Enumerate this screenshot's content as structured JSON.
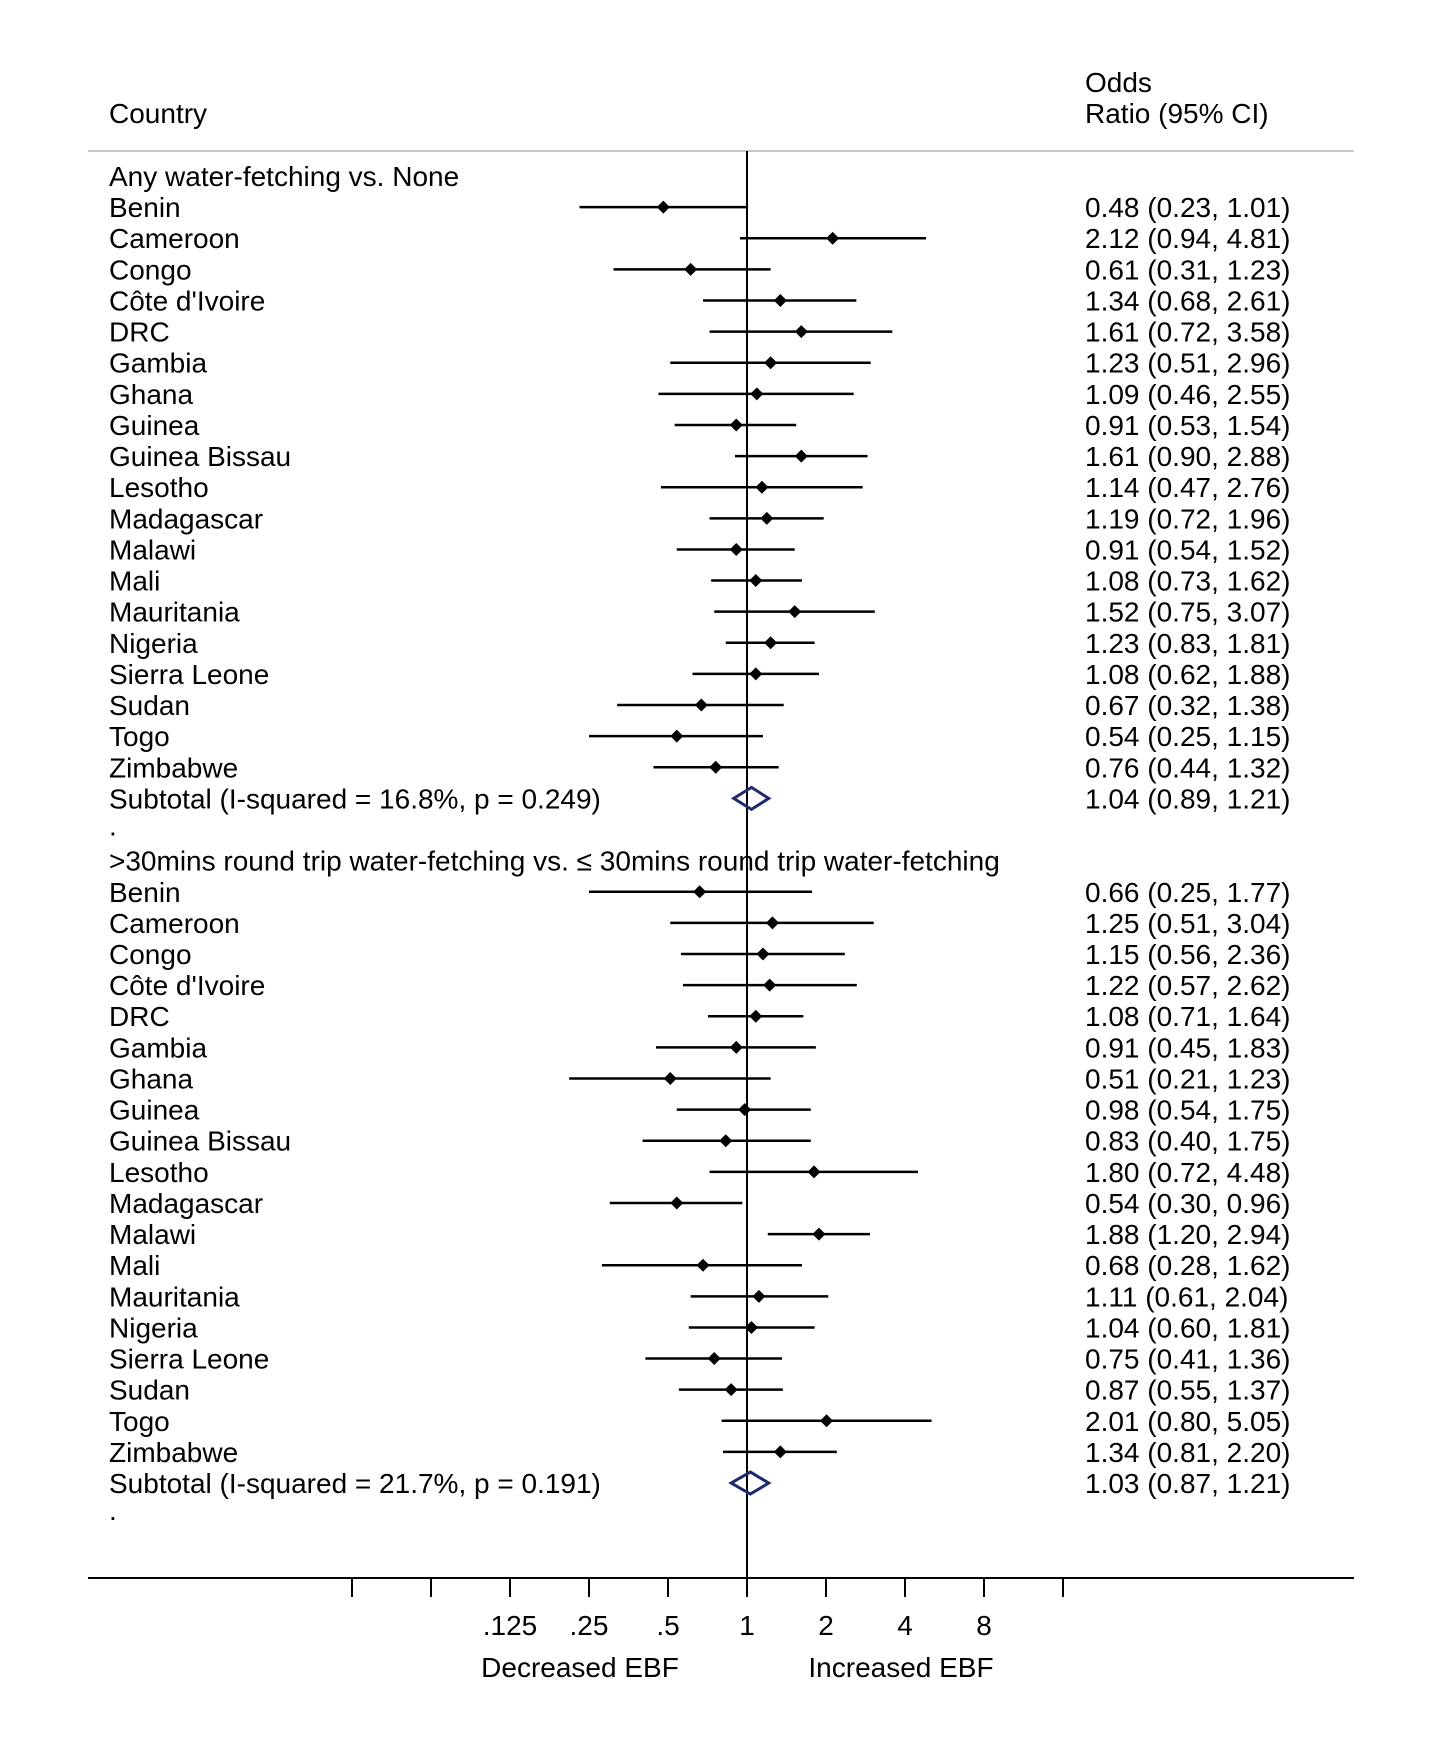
{
  "chart_data": {
    "type": "forest",
    "columns": {
      "left": "Country",
      "right_line1": "Odds",
      "right_line2": "Ratio (95% CI)"
    },
    "x_scale": "log2",
    "x_ticks": [
      ".125",
      ".25",
      ".5",
      "1",
      "2",
      "4",
      "8"
    ],
    "x_tick_values": [
      0.125,
      0.25,
      0.5,
      1,
      2,
      4,
      8
    ],
    "reference_line": 1,
    "x_annotations": {
      "left": "Decreased EBF",
      "right": "Increased EBF"
    },
    "groups": [
      {
        "title": "Any water-fetching vs. None",
        "studies": [
          {
            "label": "Benin",
            "or": 0.48,
            "lo": 0.23,
            "hi": 1.01,
            "text": "0.48 (0.23, 1.01)"
          },
          {
            "label": "Cameroon",
            "or": 2.12,
            "lo": 0.94,
            "hi": 4.81,
            "text": "2.12 (0.94, 4.81)"
          },
          {
            "label": "Congo",
            "or": 0.61,
            "lo": 0.31,
            "hi": 1.23,
            "text": "0.61 (0.31, 1.23)"
          },
          {
            "label": "Côte d'Ivoire",
            "or": 1.34,
            "lo": 0.68,
            "hi": 2.61,
            "text": "1.34 (0.68, 2.61)"
          },
          {
            "label": "DRC",
            "or": 1.61,
            "lo": 0.72,
            "hi": 3.58,
            "text": "1.61 (0.72, 3.58)"
          },
          {
            "label": "Gambia",
            "or": 1.23,
            "lo": 0.51,
            "hi": 2.96,
            "text": "1.23 (0.51, 2.96)"
          },
          {
            "label": "Ghana",
            "or": 1.09,
            "lo": 0.46,
            "hi": 2.55,
            "text": "1.09 (0.46, 2.55)"
          },
          {
            "label": "Guinea",
            "or": 0.91,
            "lo": 0.53,
            "hi": 1.54,
            "text": "0.91 (0.53, 1.54)"
          },
          {
            "label": "Guinea Bissau",
            "or": 1.61,
            "lo": 0.9,
            "hi": 2.88,
            "text": "1.61 (0.90, 2.88)"
          },
          {
            "label": "Lesotho",
            "or": 1.14,
            "lo": 0.47,
            "hi": 2.76,
            "text": "1.14 (0.47, 2.76)"
          },
          {
            "label": "Madagascar",
            "or": 1.19,
            "lo": 0.72,
            "hi": 1.96,
            "text": "1.19 (0.72, 1.96)"
          },
          {
            "label": "Malawi",
            "or": 0.91,
            "lo": 0.54,
            "hi": 1.52,
            "text": "0.91 (0.54, 1.52)"
          },
          {
            "label": "Mali",
            "or": 1.08,
            "lo": 0.73,
            "hi": 1.62,
            "text": "1.08 (0.73, 1.62)"
          },
          {
            "label": "Mauritania",
            "or": 1.52,
            "lo": 0.75,
            "hi": 3.07,
            "text": "1.52 (0.75, 3.07)"
          },
          {
            "label": "Nigeria",
            "or": 1.23,
            "lo": 0.83,
            "hi": 1.81,
            "text": "1.23 (0.83, 1.81)"
          },
          {
            "label": "Sierra Leone",
            "or": 1.08,
            "lo": 0.62,
            "hi": 1.88,
            "text": "1.08 (0.62, 1.88)"
          },
          {
            "label": "Sudan",
            "or": 0.67,
            "lo": 0.32,
            "hi": 1.38,
            "text": "0.67 (0.32, 1.38)"
          },
          {
            "label": "Togo",
            "or": 0.54,
            "lo": 0.25,
            "hi": 1.15,
            "text": "0.54 (0.25, 1.15)"
          },
          {
            "label": "Zimbabwe",
            "or": 0.76,
            "lo": 0.44,
            "hi": 1.32,
            "text": "0.76 (0.44, 1.32)"
          }
        ],
        "subtotal": {
          "label": "Subtotal  (I-squared = 16.8%, p = 0.249)",
          "or": 1.04,
          "lo": 0.89,
          "hi": 1.21,
          "text": "1.04 (0.89, 1.21)"
        },
        "separator": "."
      },
      {
        "title": ">30mins round trip water-fetching  vs. ≤ 30mins round trip water-fetching",
        "studies": [
          {
            "label": "Benin",
            "or": 0.66,
            "lo": 0.25,
            "hi": 1.77,
            "text": "0.66 (0.25, 1.77)"
          },
          {
            "label": "Cameroon",
            "or": 1.25,
            "lo": 0.51,
            "hi": 3.04,
            "text": "1.25 (0.51, 3.04)"
          },
          {
            "label": "Congo",
            "or": 1.15,
            "lo": 0.56,
            "hi": 2.36,
            "text": "1.15 (0.56, 2.36)"
          },
          {
            "label": "Côte d'Ivoire",
            "or": 1.22,
            "lo": 0.57,
            "hi": 2.62,
            "text": "1.22 (0.57, 2.62)"
          },
          {
            "label": "DRC",
            "or": 1.08,
            "lo": 0.71,
            "hi": 1.64,
            "text": "1.08 (0.71, 1.64)"
          },
          {
            "label": "Gambia",
            "or": 0.91,
            "lo": 0.45,
            "hi": 1.83,
            "text": "0.91 (0.45, 1.83)"
          },
          {
            "label": "Ghana",
            "or": 0.51,
            "lo": 0.21,
            "hi": 1.23,
            "text": "0.51 (0.21, 1.23)"
          },
          {
            "label": "Guinea",
            "or": 0.98,
            "lo": 0.54,
            "hi": 1.75,
            "text": "0.98 (0.54, 1.75)"
          },
          {
            "label": "Guinea Bissau",
            "or": 0.83,
            "lo": 0.4,
            "hi": 1.75,
            "text": "0.83 (0.40, 1.75)"
          },
          {
            "label": "Lesotho",
            "or": 1.8,
            "lo": 0.72,
            "hi": 4.48,
            "text": "1.80 (0.72, 4.48)"
          },
          {
            "label": "Madagascar",
            "or": 0.54,
            "lo": 0.3,
            "hi": 0.96,
            "text": "0.54 (0.30, 0.96)"
          },
          {
            "label": "Malawi",
            "or": 1.88,
            "lo": 1.2,
            "hi": 2.94,
            "text": "1.88 (1.20, 2.94)"
          },
          {
            "label": "Mali",
            "or": 0.68,
            "lo": 0.28,
            "hi": 1.62,
            "text": "0.68 (0.28, 1.62)"
          },
          {
            "label": "Mauritania",
            "or": 1.11,
            "lo": 0.61,
            "hi": 2.04,
            "text": "1.11 (0.61, 2.04)"
          },
          {
            "label": "Nigeria",
            "or": 1.04,
            "lo": 0.6,
            "hi": 1.81,
            "text": "1.04 (0.60, 1.81)"
          },
          {
            "label": "Sierra Leone",
            "or": 0.75,
            "lo": 0.41,
            "hi": 1.36,
            "text": "0.75 (0.41, 1.36)"
          },
          {
            "label": "Sudan",
            "or": 0.87,
            "lo": 0.55,
            "hi": 1.37,
            "text": "0.87 (0.55, 1.37)"
          },
          {
            "label": "Togo",
            "or": 2.01,
            "lo": 0.8,
            "hi": 5.05,
            "text": "2.01 (0.80, 5.05)"
          },
          {
            "label": "Zimbabwe",
            "or": 1.34,
            "lo": 0.81,
            "hi": 2.2,
            "text": "1.34 (0.81, 2.20)"
          }
        ],
        "subtotal": {
          "label": "Subtotal  (I-squared = 21.7%, p = 0.191)",
          "or": 1.03,
          "lo": 0.87,
          "hi": 1.21,
          "text": "1.03 (0.87, 1.21)"
        },
        "separator": "."
      }
    ],
    "colors": {
      "marker": "#000000",
      "line": "#000000",
      "diamond": "#1f2a6b",
      "rule": "#c8c8c8"
    }
  }
}
